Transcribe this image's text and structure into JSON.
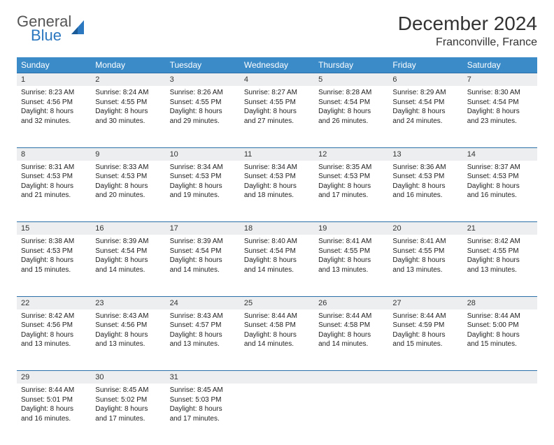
{
  "logo": {
    "word1": "General",
    "word2": "Blue"
  },
  "title": "December 2024",
  "location": "Franconville, France",
  "colors": {
    "header_bg": "#3b8bc8",
    "header_text": "#ffffff",
    "daynum_bg": "#eceeef",
    "row_border": "#2b6fa8",
    "logo_gray": "#555555",
    "logo_blue": "#2b77c0"
  },
  "weekdays": [
    "Sunday",
    "Monday",
    "Tuesday",
    "Wednesday",
    "Thursday",
    "Friday",
    "Saturday"
  ],
  "weeks": [
    [
      {
        "n": "1",
        "sr": "Sunrise: 8:23 AM",
        "ss": "Sunset: 4:56 PM",
        "d1": "Daylight: 8 hours",
        "d2": "and 32 minutes."
      },
      {
        "n": "2",
        "sr": "Sunrise: 8:24 AM",
        "ss": "Sunset: 4:55 PM",
        "d1": "Daylight: 8 hours",
        "d2": "and 30 minutes."
      },
      {
        "n": "3",
        "sr": "Sunrise: 8:26 AM",
        "ss": "Sunset: 4:55 PM",
        "d1": "Daylight: 8 hours",
        "d2": "and 29 minutes."
      },
      {
        "n": "4",
        "sr": "Sunrise: 8:27 AM",
        "ss": "Sunset: 4:55 PM",
        "d1": "Daylight: 8 hours",
        "d2": "and 27 minutes."
      },
      {
        "n": "5",
        "sr": "Sunrise: 8:28 AM",
        "ss": "Sunset: 4:54 PM",
        "d1": "Daylight: 8 hours",
        "d2": "and 26 minutes."
      },
      {
        "n": "6",
        "sr": "Sunrise: 8:29 AM",
        "ss": "Sunset: 4:54 PM",
        "d1": "Daylight: 8 hours",
        "d2": "and 24 minutes."
      },
      {
        "n": "7",
        "sr": "Sunrise: 8:30 AM",
        "ss": "Sunset: 4:54 PM",
        "d1": "Daylight: 8 hours",
        "d2": "and 23 minutes."
      }
    ],
    [
      {
        "n": "8",
        "sr": "Sunrise: 8:31 AM",
        "ss": "Sunset: 4:53 PM",
        "d1": "Daylight: 8 hours",
        "d2": "and 21 minutes."
      },
      {
        "n": "9",
        "sr": "Sunrise: 8:33 AM",
        "ss": "Sunset: 4:53 PM",
        "d1": "Daylight: 8 hours",
        "d2": "and 20 minutes."
      },
      {
        "n": "10",
        "sr": "Sunrise: 8:34 AM",
        "ss": "Sunset: 4:53 PM",
        "d1": "Daylight: 8 hours",
        "d2": "and 19 minutes."
      },
      {
        "n": "11",
        "sr": "Sunrise: 8:34 AM",
        "ss": "Sunset: 4:53 PM",
        "d1": "Daylight: 8 hours",
        "d2": "and 18 minutes."
      },
      {
        "n": "12",
        "sr": "Sunrise: 8:35 AM",
        "ss": "Sunset: 4:53 PM",
        "d1": "Daylight: 8 hours",
        "d2": "and 17 minutes."
      },
      {
        "n": "13",
        "sr": "Sunrise: 8:36 AM",
        "ss": "Sunset: 4:53 PM",
        "d1": "Daylight: 8 hours",
        "d2": "and 16 minutes."
      },
      {
        "n": "14",
        "sr": "Sunrise: 8:37 AM",
        "ss": "Sunset: 4:53 PM",
        "d1": "Daylight: 8 hours",
        "d2": "and 16 minutes."
      }
    ],
    [
      {
        "n": "15",
        "sr": "Sunrise: 8:38 AM",
        "ss": "Sunset: 4:53 PM",
        "d1": "Daylight: 8 hours",
        "d2": "and 15 minutes."
      },
      {
        "n": "16",
        "sr": "Sunrise: 8:39 AM",
        "ss": "Sunset: 4:54 PM",
        "d1": "Daylight: 8 hours",
        "d2": "and 14 minutes."
      },
      {
        "n": "17",
        "sr": "Sunrise: 8:39 AM",
        "ss": "Sunset: 4:54 PM",
        "d1": "Daylight: 8 hours",
        "d2": "and 14 minutes."
      },
      {
        "n": "18",
        "sr": "Sunrise: 8:40 AM",
        "ss": "Sunset: 4:54 PM",
        "d1": "Daylight: 8 hours",
        "d2": "and 14 minutes."
      },
      {
        "n": "19",
        "sr": "Sunrise: 8:41 AM",
        "ss": "Sunset: 4:55 PM",
        "d1": "Daylight: 8 hours",
        "d2": "and 13 minutes."
      },
      {
        "n": "20",
        "sr": "Sunrise: 8:41 AM",
        "ss": "Sunset: 4:55 PM",
        "d1": "Daylight: 8 hours",
        "d2": "and 13 minutes."
      },
      {
        "n": "21",
        "sr": "Sunrise: 8:42 AM",
        "ss": "Sunset: 4:55 PM",
        "d1": "Daylight: 8 hours",
        "d2": "and 13 minutes."
      }
    ],
    [
      {
        "n": "22",
        "sr": "Sunrise: 8:42 AM",
        "ss": "Sunset: 4:56 PM",
        "d1": "Daylight: 8 hours",
        "d2": "and 13 minutes."
      },
      {
        "n": "23",
        "sr": "Sunrise: 8:43 AM",
        "ss": "Sunset: 4:56 PM",
        "d1": "Daylight: 8 hours",
        "d2": "and 13 minutes."
      },
      {
        "n": "24",
        "sr": "Sunrise: 8:43 AM",
        "ss": "Sunset: 4:57 PM",
        "d1": "Daylight: 8 hours",
        "d2": "and 13 minutes."
      },
      {
        "n": "25",
        "sr": "Sunrise: 8:44 AM",
        "ss": "Sunset: 4:58 PM",
        "d1": "Daylight: 8 hours",
        "d2": "and 14 minutes."
      },
      {
        "n": "26",
        "sr": "Sunrise: 8:44 AM",
        "ss": "Sunset: 4:58 PM",
        "d1": "Daylight: 8 hours",
        "d2": "and 14 minutes."
      },
      {
        "n": "27",
        "sr": "Sunrise: 8:44 AM",
        "ss": "Sunset: 4:59 PM",
        "d1": "Daylight: 8 hours",
        "d2": "and 15 minutes."
      },
      {
        "n": "28",
        "sr": "Sunrise: 8:44 AM",
        "ss": "Sunset: 5:00 PM",
        "d1": "Daylight: 8 hours",
        "d2": "and 15 minutes."
      }
    ],
    [
      {
        "n": "29",
        "sr": "Sunrise: 8:44 AM",
        "ss": "Sunset: 5:01 PM",
        "d1": "Daylight: 8 hours",
        "d2": "and 16 minutes."
      },
      {
        "n": "30",
        "sr": "Sunrise: 8:45 AM",
        "ss": "Sunset: 5:02 PM",
        "d1": "Daylight: 8 hours",
        "d2": "and 17 minutes."
      },
      {
        "n": "31",
        "sr": "Sunrise: 8:45 AM",
        "ss": "Sunset: 5:03 PM",
        "d1": "Daylight: 8 hours",
        "d2": "and 17 minutes."
      },
      null,
      null,
      null,
      null
    ]
  ]
}
